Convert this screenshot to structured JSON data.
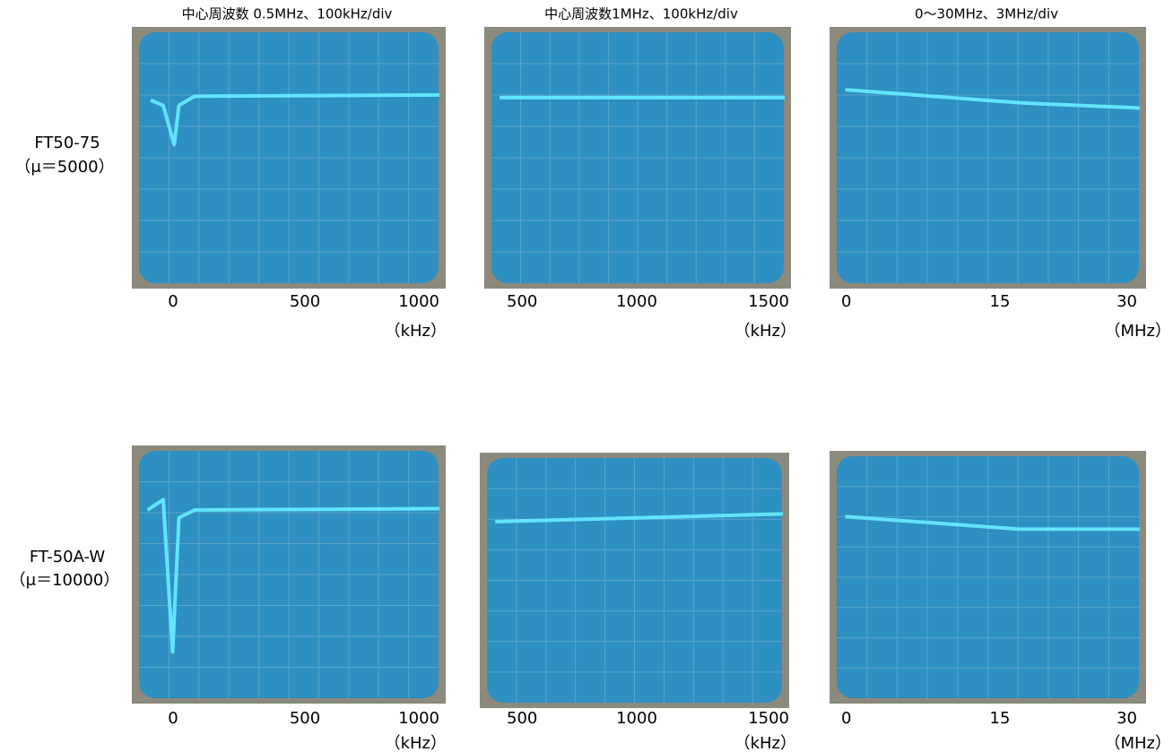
{
  "columns": [
    {
      "title": "中心周波数 0.5MHz、100kHz/div",
      "ticks": [
        "0",
        "500",
        "1000"
      ],
      "unit": "（kHz）"
    },
    {
      "title": "中心周波数1MHz、100kHz/div",
      "ticks": [
        "500",
        "1000",
        "1500"
      ],
      "unit": "（kHz）"
    },
    {
      "title": "0～30MHz、3MHz/div",
      "ticks": [
        "0",
        "15",
        "30"
      ],
      "unit": "（MHz）"
    }
  ],
  "rows": [
    {
      "name": "FT50-75",
      "permeability": "（μ＝5000）"
    },
    {
      "name": "FT-50A-W",
      "permeability": "（μ＝10000）"
    }
  ]
}
